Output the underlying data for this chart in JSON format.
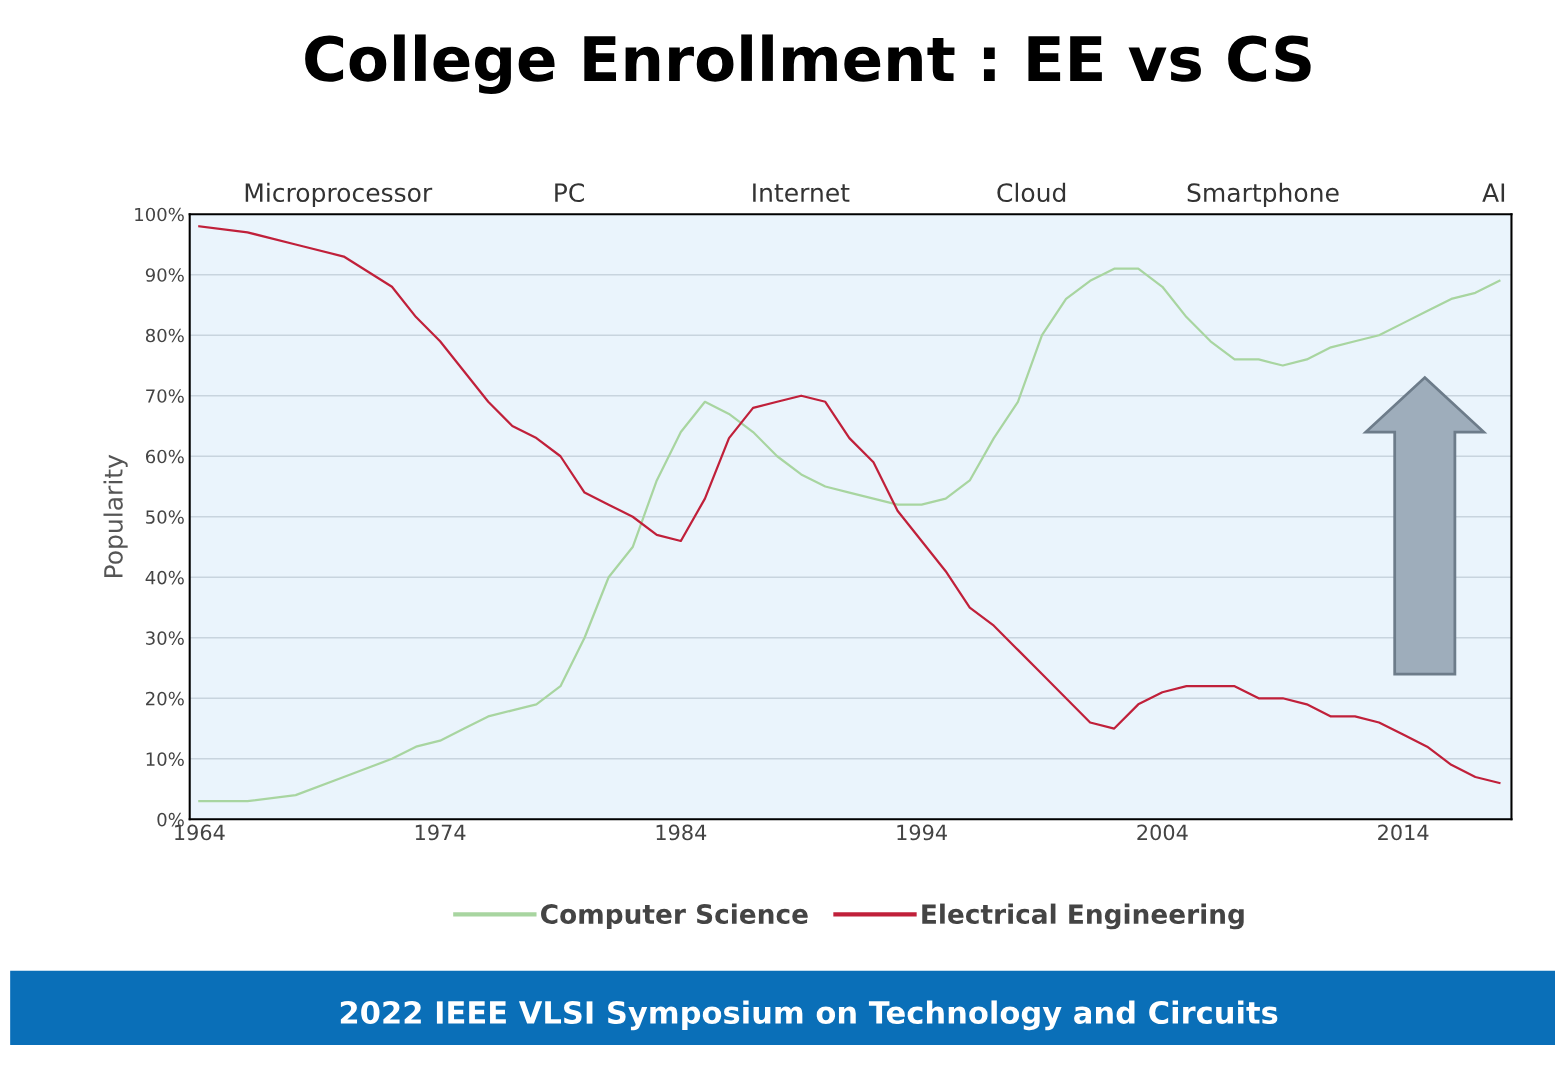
{
  "chart_data": {
    "type": "line",
    "title": "College Enrollment : EE vs CS",
    "ylabel": "Popularity",
    "x": [
      1964,
      1966,
      1968,
      1970,
      1972,
      1973,
      1974,
      1975,
      1976,
      1977,
      1978,
      1979,
      1980,
      1981,
      1982,
      1983,
      1984,
      1985,
      1986,
      1987,
      1988,
      1989,
      1990,
      1991,
      1992,
      1993,
      1994,
      1995,
      1996,
      1997,
      1998,
      1999,
      2000,
      2001,
      2002,
      2003,
      2004,
      2005,
      2006,
      2007,
      2008,
      2009,
      2010,
      2011,
      2012,
      2013,
      2014,
      2015,
      2016,
      2017,
      2018
    ],
    "series": [
      {
        "name": "Computer Science",
        "color": "#a8d5a0",
        "values": [
          3,
          3,
          4,
          7,
          10,
          12,
          13,
          15,
          17,
          18,
          19,
          22,
          30,
          40,
          45,
          56,
          64,
          69,
          67,
          64,
          60,
          57,
          55,
          54,
          53,
          52,
          52,
          53,
          56,
          63,
          69,
          80,
          86,
          89,
          91,
          91,
          88,
          83,
          79,
          76,
          76,
          75,
          76,
          78,
          79,
          80,
          82,
          84,
          86,
          87,
          89
        ]
      },
      {
        "name": "Electrical Engineering",
        "color": "#c0203a",
        "values": [
          98,
          97,
          95,
          93,
          88,
          83,
          79,
          74,
          69,
          65,
          63,
          60,
          54,
          52,
          50,
          47,
          46,
          53,
          63,
          68,
          69,
          70,
          69,
          63,
          59,
          51,
          46,
          41,
          35,
          32,
          28,
          24,
          20,
          16,
          15,
          19,
          21,
          22,
          22,
          22,
          20,
          20,
          19,
          17,
          17,
          16,
          14,
          12,
          9,
          7,
          6
        ]
      }
    ],
    "xlim": [
      1963.6,
      2018.5
    ],
    "xticks": [
      1964,
      1974,
      1984,
      1994,
      2004,
      2014
    ],
    "ylim": [
      0,
      100
    ],
    "yticks": [
      {
        "value": 0,
        "label": "0%"
      },
      {
        "value": 10,
        "label": "10%"
      },
      {
        "value": 20,
        "label": "20%"
      },
      {
        "value": 30,
        "label": "30%"
      },
      {
        "value": 40,
        "label": "40%"
      },
      {
        "value": 50,
        "label": "50%"
      },
      {
        "value": 60,
        "label": "60%"
      },
      {
        "value": 70,
        "label": "70%"
      },
      {
        "value": 80,
        "label": "80%"
      },
      {
        "value": 90,
        "label": "90%"
      },
      {
        "value": 100,
        "label": "100%"
      }
    ],
    "grid": "y",
    "legend": "bottom",
    "marker": "none",
    "line_style": "solid",
    "annotations": [
      "Microprocessor",
      "PC",
      "Internet",
      "Cloud",
      "Smartphone",
      "AI",
      "2022 IEEE VLSI Symposium on Technology and Circuits"
    ]
  }
}
